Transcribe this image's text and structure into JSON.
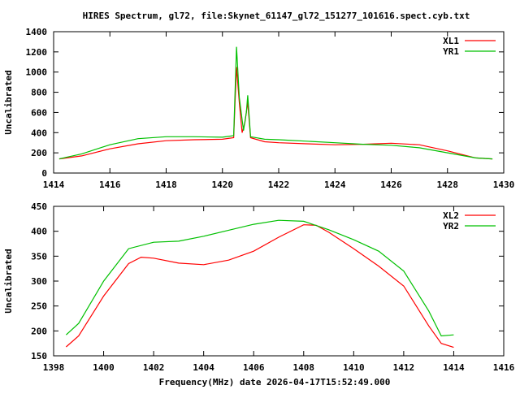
{
  "chart_data": [
    {
      "type": "line",
      "title": "HIRES Spectrum, gl72, file:Skynet_61147_gl72_151277_101616.spect.cyb.txt",
      "xlabel": "",
      "ylabel": "Uncalibrated",
      "xlim": [
        1414,
        1430
      ],
      "ylim": [
        0,
        1400
      ],
      "xticks": [
        1414,
        1416,
        1418,
        1420,
        1422,
        1424,
        1426,
        1428,
        1430
      ],
      "yticks": [
        0,
        200,
        400,
        600,
        800,
        1000,
        1200,
        1400
      ],
      "grid": false,
      "legend_position": "top-right",
      "series": [
        {
          "name": "XL1",
          "color": "#ff0000",
          "x": [
            1414.2,
            1415,
            1416,
            1417,
            1418,
            1419,
            1420,
            1420.4,
            1420.45,
            1420.5,
            1420.6,
            1420.7,
            1420.8,
            1420.9,
            1421,
            1421.5,
            1422,
            1423,
            1424,
            1425,
            1426,
            1427,
            1428,
            1429,
            1429.6
          ],
          "y": [
            140,
            170,
            240,
            290,
            320,
            330,
            335,
            350,
            700,
            1050,
            700,
            400,
            500,
            700,
            350,
            310,
            300,
            290,
            280,
            285,
            295,
            280,
            220,
            150,
            140
          ]
        },
        {
          "name": "YR1",
          "color": "#00c000",
          "x": [
            1414.2,
            1415,
            1416,
            1417,
            1418,
            1419,
            1420,
            1420.4,
            1420.45,
            1420.5,
            1420.6,
            1420.75,
            1420.85,
            1420.9,
            1421,
            1421.5,
            1422,
            1423,
            1424,
            1425,
            1426,
            1427,
            1428,
            1429,
            1429.6
          ],
          "y": [
            140,
            190,
            280,
            340,
            360,
            360,
            355,
            370,
            800,
            1250,
            750,
            420,
            600,
            770,
            360,
            335,
            330,
            315,
            300,
            285,
            275,
            250,
            200,
            150,
            140
          ]
        }
      ]
    },
    {
      "type": "line",
      "title": "",
      "xlabel": "Frequency(MHz) date 2026-04-17T15:52:49.000",
      "ylabel": "Uncalibrated",
      "xlim": [
        1398,
        1416
      ],
      "ylim": [
        150,
        450
      ],
      "xticks": [
        1398,
        1400,
        1402,
        1404,
        1406,
        1408,
        1410,
        1412,
        1414,
        1416
      ],
      "yticks": [
        150,
        200,
        250,
        300,
        350,
        400,
        450
      ],
      "grid": false,
      "legend_position": "top-right",
      "series": [
        {
          "name": "XL2",
          "color": "#ff0000",
          "x": [
            1398.5,
            1399,
            1400,
            1401,
            1401.5,
            1402,
            1403,
            1404,
            1405,
            1406,
            1407,
            1408,
            1408.5,
            1409,
            1410,
            1411,
            1412,
            1413,
            1413.5,
            1414
          ],
          "y": [
            168,
            190,
            270,
            335,
            348,
            346,
            336,
            333,
            342,
            360,
            388,
            413,
            412,
            398,
            365,
            330,
            290,
            210,
            175,
            167
          ]
        },
        {
          "name": "YR2",
          "color": "#00c000",
          "x": [
            1398.5,
            1399,
            1400,
            1401,
            1402,
            1403,
            1404,
            1405,
            1406,
            1407,
            1408,
            1409,
            1410,
            1411,
            1412,
            1413,
            1413.5,
            1414
          ],
          "y": [
            192,
            215,
            300,
            365,
            378,
            380,
            390,
            402,
            414,
            422,
            420,
            403,
            383,
            360,
            320,
            240,
            190,
            192
          ]
        }
      ]
    }
  ]
}
